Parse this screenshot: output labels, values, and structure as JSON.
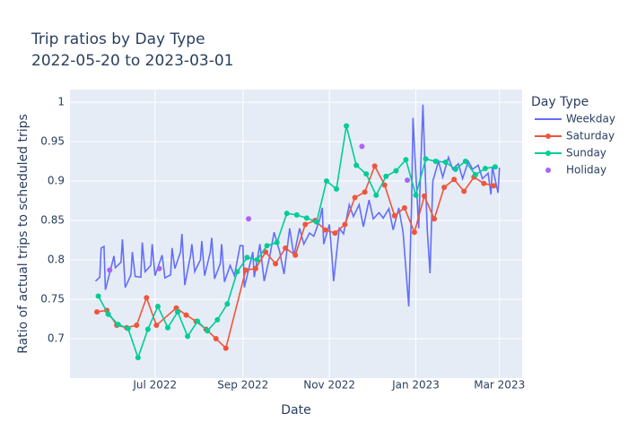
{
  "chart_data": {
    "type": "line",
    "title": "Trip ratios by Day Type",
    "subtitle": "2022-05-20 to 2023-03-01",
    "x_label": "Date",
    "y_label": "Ratio of actual trips to scheduled trips",
    "legend_title": "Day Type",
    "legend_position": "right",
    "grid": true,
    "xlim": [
      "2022-05-02",
      "2023-03-17"
    ],
    "xticks": [
      {
        "value": "2022-07-01",
        "label": "Jul 2022"
      },
      {
        "value": "2022-09-01",
        "label": "Sep 2022"
      },
      {
        "value": "2022-11-01",
        "label": "Nov 2022"
      },
      {
        "value": "2023-01-01",
        "label": "Jan 2023"
      },
      {
        "value": "2023-03-01",
        "label": "Mar 2023"
      }
    ],
    "ylim": [
      0.65,
      1.016
    ],
    "yticks": [
      0.7,
      0.75,
      0.8,
      0.85,
      0.9,
      0.95,
      1
    ],
    "series": [
      {
        "name": "Weekday",
        "color": "#636efa",
        "mode": "lines",
        "x": [
          "2022-05-20",
          "2022-05-23",
          "2022-05-24",
          "2022-05-26",
          "2022-05-27",
          "2022-05-31",
          "2022-06-02",
          "2022-06-03",
          "2022-06-07",
          "2022-06-08",
          "2022-06-10",
          "2022-06-14",
          "2022-06-15",
          "2022-06-17",
          "2022-06-21",
          "2022-06-22",
          "2022-06-24",
          "2022-06-28",
          "2022-06-29",
          "2022-07-01",
          "2022-07-06",
          "2022-07-08",
          "2022-07-12",
          "2022-07-13",
          "2022-07-15",
          "2022-07-19",
          "2022-07-20",
          "2022-07-22",
          "2022-07-26",
          "2022-07-27",
          "2022-07-29",
          "2022-08-02",
          "2022-08-03",
          "2022-08-05",
          "2022-08-09",
          "2022-08-10",
          "2022-08-12",
          "2022-08-16",
          "2022-08-17",
          "2022-08-19",
          "2022-08-23",
          "2022-08-26",
          "2022-08-30",
          "2022-09-01",
          "2022-09-02",
          "2022-09-06",
          "2022-09-08",
          "2022-09-09",
          "2022-09-13",
          "2022-09-16",
          "2022-09-20",
          "2022-09-23",
          "2022-09-27",
          "2022-09-30",
          "2022-10-04",
          "2022-10-07",
          "2022-10-11",
          "2022-10-14",
          "2022-10-18",
          "2022-10-21",
          "2022-10-25",
          "2022-10-27",
          "2022-10-28",
          "2022-11-01",
          "2022-11-03",
          "2022-11-04",
          "2022-11-08",
          "2022-11-11",
          "2022-11-15",
          "2022-11-18",
          "2022-11-22",
          "2022-11-25",
          "2022-11-29",
          "2022-12-02",
          "2022-12-06",
          "2022-12-09",
          "2022-12-13",
          "2022-12-16",
          "2022-12-20",
          "2022-12-23",
          "2022-12-27",
          "2022-12-29",
          "2022-12-30",
          "2023-01-03",
          "2023-01-06",
          "2023-01-09",
          "2023-01-11",
          "2023-01-13",
          "2023-01-17",
          "2023-01-20",
          "2023-01-24",
          "2023-01-27",
          "2023-01-31",
          "2023-02-03",
          "2023-02-07",
          "2023-02-10",
          "2023-02-14",
          "2023-02-17",
          "2023-02-21",
          "2023-02-23",
          "2023-02-24",
          "2023-02-28",
          "2023-03-01"
        ],
        "values": [
          0.773,
          0.778,
          0.815,
          0.817,
          0.762,
          0.79,
          0.805,
          0.79,
          0.797,
          0.826,
          0.765,
          0.781,
          0.81,
          0.779,
          0.778,
          0.822,
          0.785,
          0.793,
          0.82,
          0.78,
          0.806,
          0.777,
          0.781,
          0.815,
          0.789,
          0.81,
          0.833,
          0.768,
          0.805,
          0.82,
          0.785,
          0.8,
          0.824,
          0.78,
          0.81,
          0.828,
          0.776,
          0.795,
          0.82,
          0.772,
          0.793,
          0.78,
          0.818,
          0.818,
          0.765,
          0.795,
          0.81,
          0.778,
          0.82,
          0.773,
          0.805,
          0.835,
          0.81,
          0.782,
          0.84,
          0.805,
          0.84,
          0.82,
          0.834,
          0.83,
          0.85,
          0.866,
          0.82,
          0.845,
          0.8,
          0.773,
          0.84,
          0.833,
          0.87,
          0.855,
          0.87,
          0.842,
          0.876,
          0.852,
          0.86,
          0.853,
          0.865,
          0.838,
          0.866,
          0.835,
          0.741,
          0.87,
          0.98,
          0.84,
          0.997,
          0.84,
          0.783,
          0.9,
          0.925,
          0.905,
          0.93,
          0.915,
          0.922,
          0.903,
          0.925,
          0.915,
          0.92,
          0.903,
          0.91,
          0.883,
          0.918,
          0.885,
          0.917
        ]
      },
      {
        "name": "Saturday",
        "color": "#EF553B",
        "mode": "lines+markers",
        "x": [
          "2022-05-21",
          "2022-05-28",
          "2022-06-04",
          "2022-06-11",
          "2022-06-18",
          "2022-06-25",
          "2022-07-02",
          "2022-07-16",
          "2022-07-23",
          "2022-07-30",
          "2022-08-06",
          "2022-08-13",
          "2022-08-20",
          "2022-09-03",
          "2022-09-10",
          "2022-09-17",
          "2022-09-24",
          "2022-10-01",
          "2022-10-08",
          "2022-10-15",
          "2022-10-22",
          "2022-10-29",
          "2022-11-05",
          "2022-11-12",
          "2022-11-19",
          "2022-11-26",
          "2022-12-03",
          "2022-12-10",
          "2022-12-17",
          "2022-12-24",
          "2022-12-31",
          "2023-01-07",
          "2023-01-14",
          "2023-01-21",
          "2023-01-28",
          "2023-02-04",
          "2023-02-11",
          "2023-02-18",
          "2023-02-25"
        ],
        "values": [
          0.734,
          0.736,
          0.717,
          0.714,
          0.717,
          0.752,
          0.717,
          0.739,
          0.73,
          0.722,
          0.712,
          0.7,
          0.688,
          0.787,
          0.789,
          0.81,
          0.795,
          0.815,
          0.806,
          0.845,
          0.85,
          0.838,
          0.834,
          0.845,
          0.879,
          0.886,
          0.919,
          0.895,
          0.856,
          0.866,
          0.835,
          0.881,
          0.852,
          0.892,
          0.902,
          0.887,
          0.905,
          0.897,
          0.894
        ]
      },
      {
        "name": "Sunday",
        "color": "#00cc96",
        "mode": "lines+markers",
        "x": [
          "2022-05-22",
          "2022-05-29",
          "2022-06-05",
          "2022-06-12",
          "2022-06-19",
          "2022-06-26",
          "2022-07-03",
          "2022-07-10",
          "2022-07-17",
          "2022-07-24",
          "2022-07-31",
          "2022-08-07",
          "2022-08-14",
          "2022-08-21",
          "2022-08-28",
          "2022-09-04",
          "2022-09-11",
          "2022-09-18",
          "2022-09-25",
          "2022-10-02",
          "2022-10-09",
          "2022-10-16",
          "2022-10-23",
          "2022-10-30",
          "2022-11-06",
          "2022-11-13",
          "2022-11-20",
          "2022-11-27",
          "2022-12-04",
          "2022-12-11",
          "2022-12-18",
          "2022-12-25",
          "2023-01-01",
          "2023-01-08",
          "2023-01-15",
          "2023-01-22",
          "2023-01-29",
          "2023-02-05",
          "2023-02-12",
          "2023-02-19",
          "2023-02-26"
        ],
        "values": [
          0.754,
          0.731,
          0.718,
          0.713,
          0.676,
          0.712,
          0.741,
          0.714,
          0.734,
          0.703,
          0.722,
          0.71,
          0.724,
          0.744,
          0.785,
          0.803,
          0.8,
          0.818,
          0.822,
          0.859,
          0.857,
          0.853,
          0.848,
          0.9,
          0.89,
          0.97,
          0.92,
          0.909,
          0.882,
          0.906,
          0.913,
          0.927,
          0.882,
          0.928,
          0.925,
          0.924,
          0.915,
          0.925,
          0.908,
          0.916,
          0.918
        ]
      },
      {
        "name": "Holiday",
        "color": "#ab63fa",
        "mode": "markers",
        "x": [
          "2022-05-30",
          "2022-07-04",
          "2022-09-05",
          "2022-11-24",
          "2022-12-26"
        ],
        "values": [
          0.787,
          0.789,
          0.852,
          0.944,
          0.901
        ]
      }
    ]
  }
}
